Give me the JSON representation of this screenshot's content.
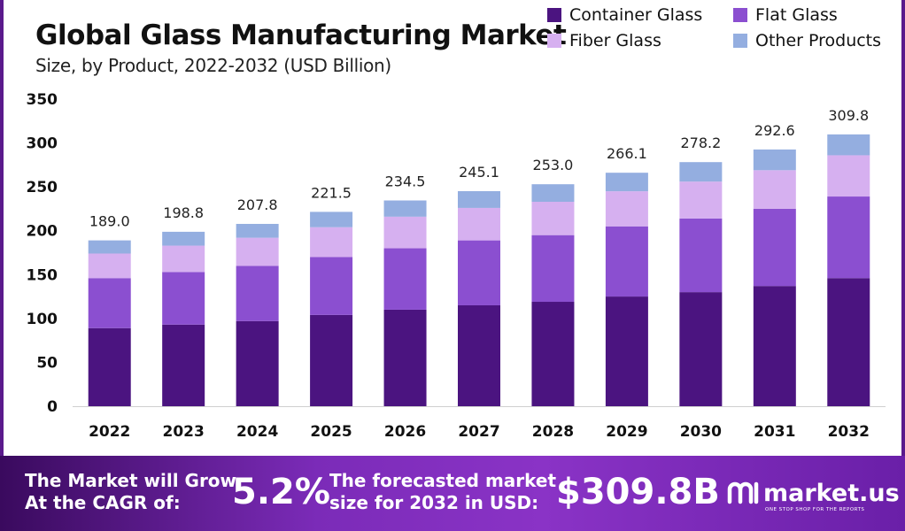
{
  "chart_data": {
    "type": "bar",
    "stacked": true,
    "title": "Global Glass Manufacturing Market",
    "subtitle": "Size, by Product, 2022-2032 (USD Billion)",
    "xlabel": "",
    "ylabel": "",
    "ylim": [
      0,
      350
    ],
    "yticks": [
      0,
      50,
      100,
      150,
      200,
      250,
      300,
      350
    ],
    "grid": false,
    "legend_position": "top-right",
    "categories": [
      "2022",
      "2023",
      "2024",
      "2025",
      "2026",
      "2027",
      "2028",
      "2029",
      "2030",
      "2031",
      "2032"
    ],
    "series": [
      {
        "name": "Container Glass",
        "color": "#4b1480",
        "values": [
          89,
          93,
          97,
          104,
          110,
          115,
          119,
          125,
          130,
          137,
          146
        ]
      },
      {
        "name": "Flat Glass",
        "color": "#8b4fd0",
        "values": [
          57,
          60,
          63,
          66,
          70,
          74,
          76,
          80,
          84,
          88,
          93
        ]
      },
      {
        "name": "Fiber Glass",
        "color": "#d6b0f0",
        "values": [
          28,
          30,
          32,
          34,
          36,
          37,
          38,
          40,
          42,
          44,
          47
        ]
      },
      {
        "name": "Other Products",
        "color": "#94aee0",
        "values": [
          15,
          15.8,
          15.8,
          17.5,
          18.5,
          19.1,
          20,
          21.1,
          22.2,
          23.6,
          23.8
        ]
      }
    ],
    "totals": [
      189.0,
      198.8,
      207.8,
      221.5,
      234.5,
      245.1,
      253.0,
      266.1,
      278.2,
      292.6,
      309.8
    ],
    "total_labels": [
      "189.0",
      "198.8",
      "207.8",
      "221.5",
      "234.5",
      "245.1",
      "253.0",
      "266.1",
      "278.2",
      "292.6",
      "309.8"
    ]
  },
  "legend": [
    {
      "label": "Container Glass",
      "color": "#4b1480"
    },
    {
      "label": "Flat Glass",
      "color": "#8b4fd0"
    },
    {
      "label": "Fiber Glass",
      "color": "#d6b0f0"
    },
    {
      "label": "Other Products",
      "color": "#94aee0"
    }
  ],
  "banner": {
    "cagr_text_line1": "The Market will Grow",
    "cagr_text_line2": "At the CAGR of:",
    "cagr_value": "5.2%",
    "forecast_text_line1": "The forecasted market",
    "forecast_text_line2": "size for 2032 in USD:",
    "forecast_value": "$309.8B",
    "brand": "market.us",
    "brand_tagline": "ONE STOP SHOP FOR THE REPORTS"
  }
}
